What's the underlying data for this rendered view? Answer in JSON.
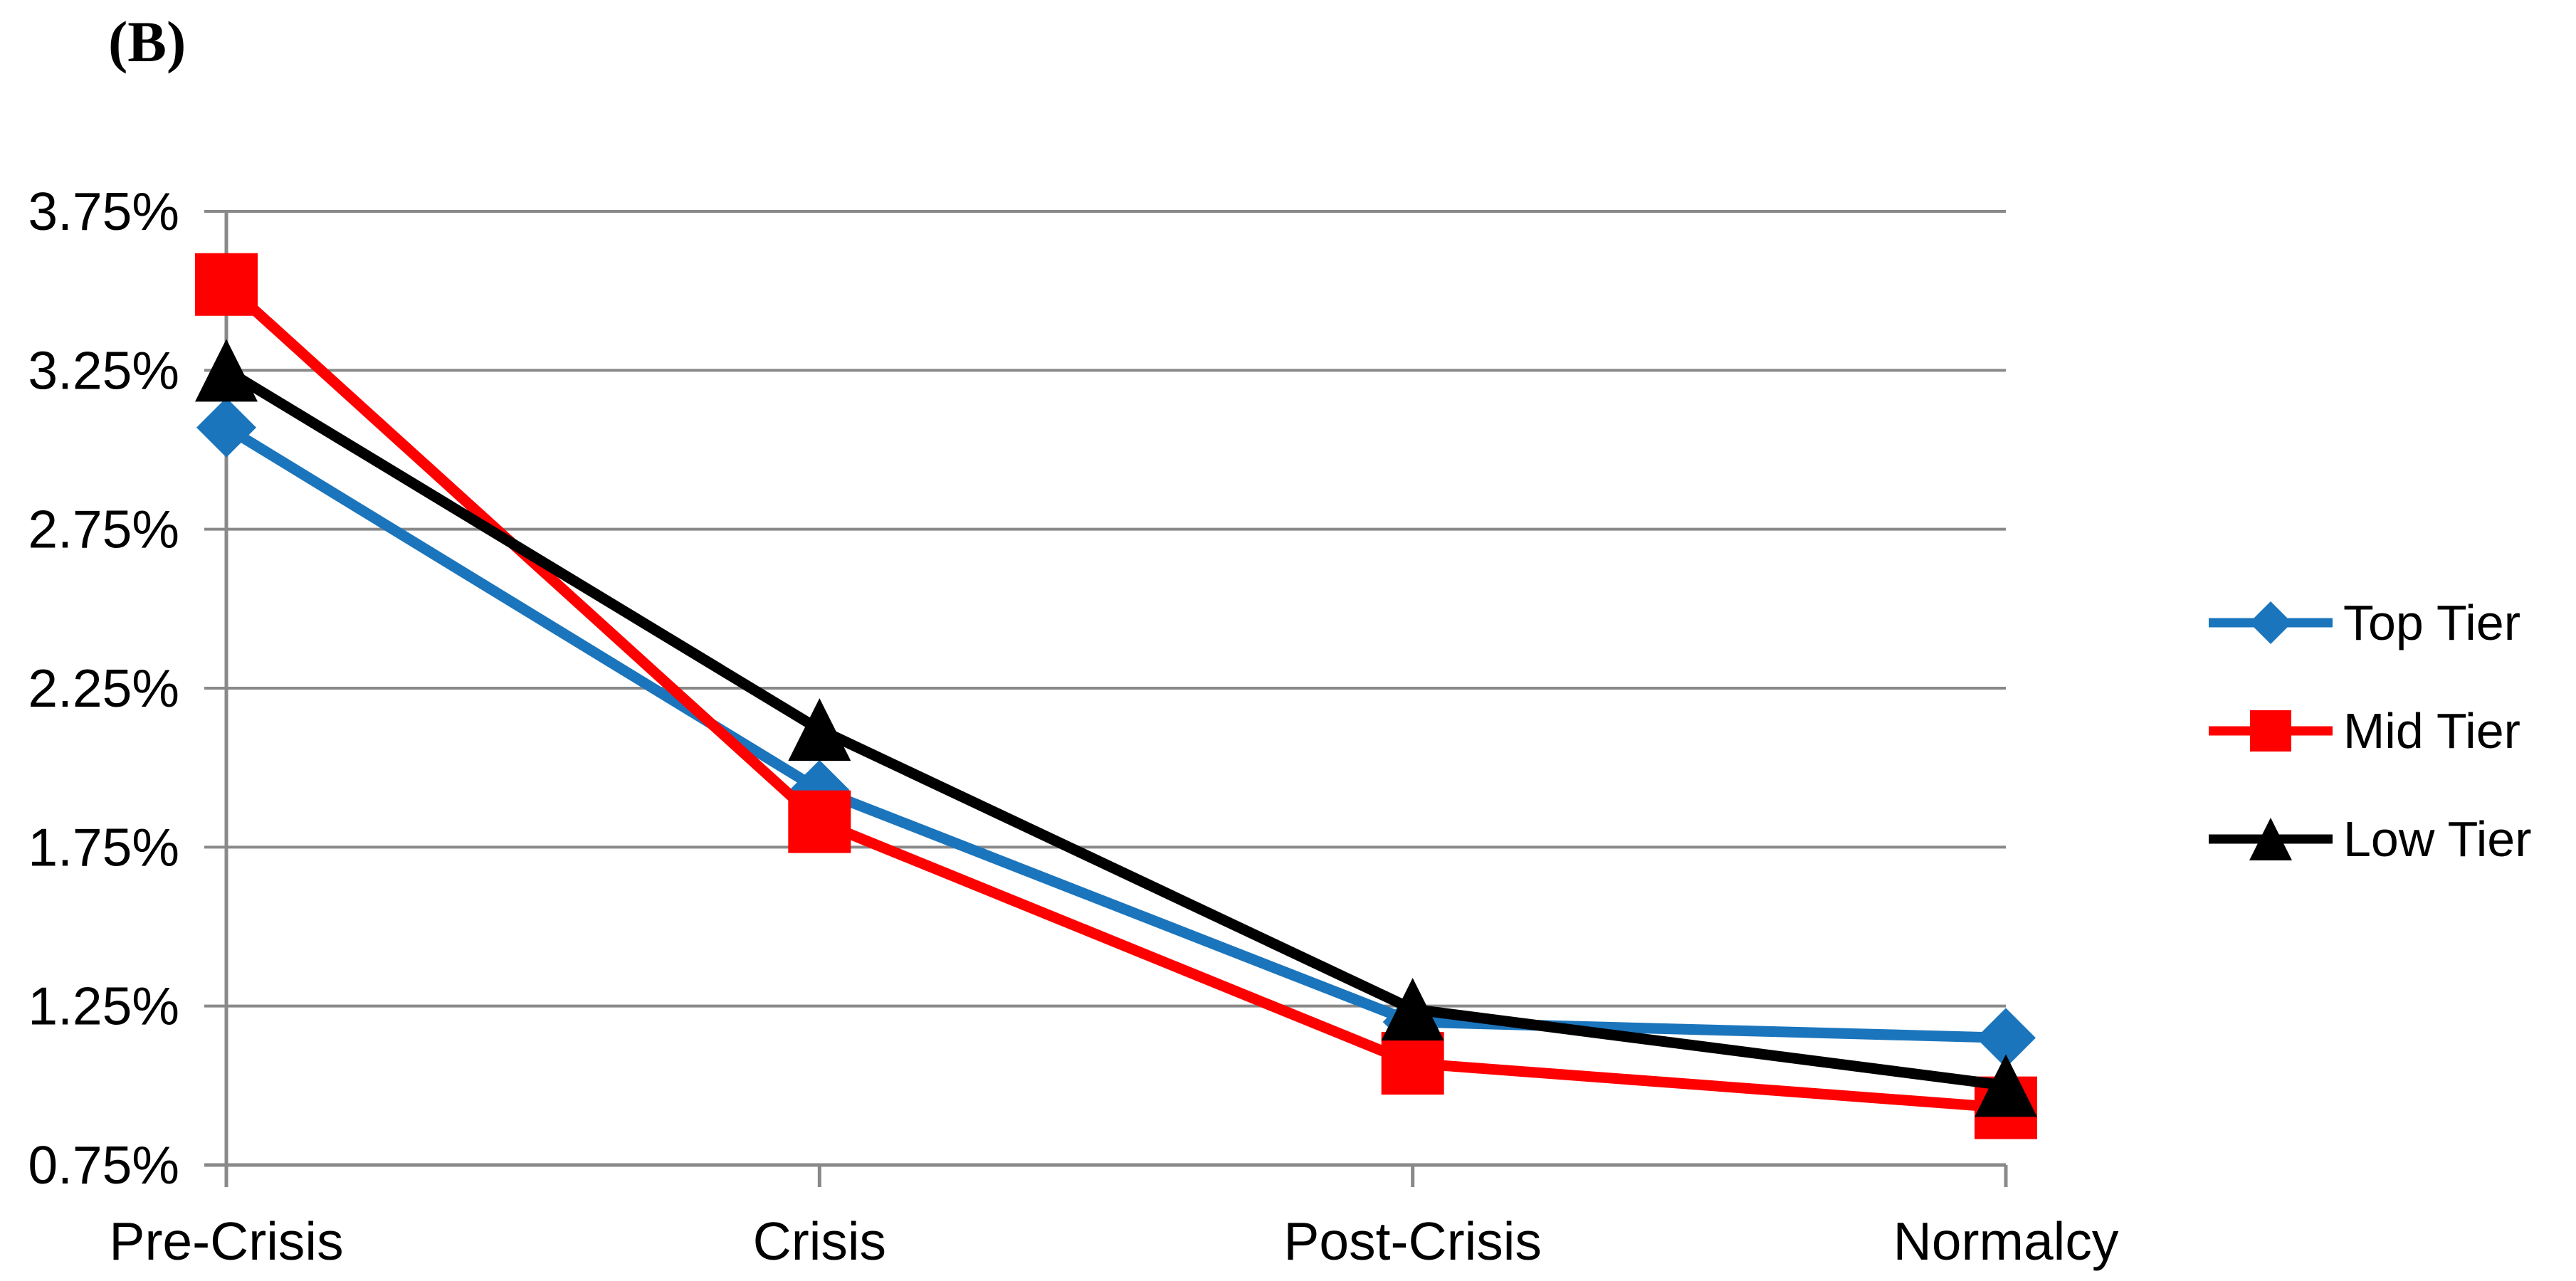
{
  "title": "(B)",
  "chart_data": {
    "type": "line",
    "categories": [
      "Pre-Crisis",
      "Crisis",
      "Post-Crisis",
      "Normalcy"
    ],
    "series": [
      {
        "name": "Top Tier",
        "color": "#1B75BC",
        "marker": "diamond",
        "values": [
          3.07,
          1.93,
          1.2,
          1.15
        ]
      },
      {
        "name": "Mid Tier",
        "color": "#FF0000",
        "marker": "square",
        "values": [
          3.52,
          1.83,
          1.07,
          0.93
        ]
      },
      {
        "name": "Low Tier",
        "color": "#000000",
        "marker": "triangle",
        "values": [
          3.25,
          2.12,
          1.24,
          1.0
        ]
      }
    ],
    "y_tick_labels": [
      "3.75%",
      "3.25%",
      "2.75%",
      "2.25%",
      "1.75%",
      "1.25%",
      "0.75%"
    ],
    "y_tick_values": [
      3.75,
      3.25,
      2.75,
      2.25,
      1.75,
      1.25,
      0.75
    ],
    "ylim": [
      0.75,
      3.75
    ],
    "xlabel": "",
    "ylabel": "",
    "grid": true,
    "gridline_color": "#898989",
    "axis_color": "#898989",
    "legend_position": "right"
  }
}
